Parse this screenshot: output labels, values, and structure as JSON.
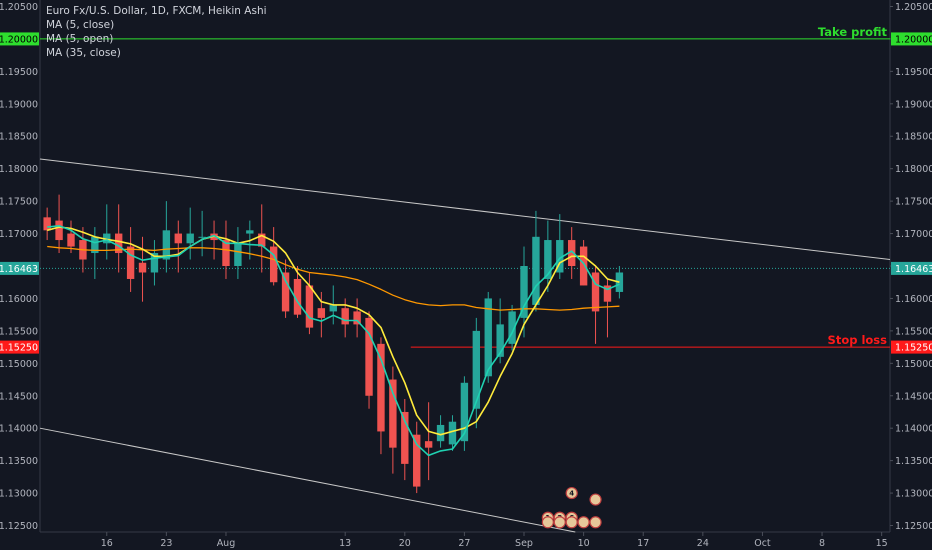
{
  "chart_data": {
    "type": "candlestick",
    "title": "Euro Fx/U.S. Dollar, 1D, FXCM, Heikin Ashi",
    "indicators": [
      "MA (5, close)",
      "MA (5, open)",
      "MA (35, close)"
    ],
    "ylim": [
      1.124,
      1.206
    ],
    "y_ticks": [
      1.125,
      1.13,
      1.135,
      1.14,
      1.145,
      1.15,
      1.155,
      1.16,
      1.165,
      1.17,
      1.175,
      1.18,
      1.185,
      1.19,
      1.195,
      1.2,
      1.205
    ],
    "y_tick_labels": [
      "1.12500",
      "1.13000",
      "1.13500",
      "1.14000",
      "1.14500",
      "1.15000",
      "1.15500",
      "1.16000",
      "1.16500",
      "1.17000",
      "1.17500",
      "1.18000",
      "1.18500",
      "1.19000",
      "1.19500",
      "1.20000",
      "1.20500"
    ],
    "x_ticks": [
      {
        "i": 5,
        "label": "16"
      },
      {
        "i": 10,
        "label": "23"
      },
      {
        "i": 15,
        "label": "Aug"
      },
      {
        "i": 25,
        "label": "13"
      },
      {
        "i": 30,
        "label": "20"
      },
      {
        "i": 35,
        "label": "27"
      },
      {
        "i": 40,
        "label": "Sep"
      },
      {
        "i": 45,
        "label": "10"
      },
      {
        "i": 50,
        "label": "17"
      },
      {
        "i": 55,
        "label": "24"
      },
      {
        "i": 60,
        "label": "Oct"
      },
      {
        "i": 65,
        "label": "8"
      },
      {
        "i": 70,
        "label": "15"
      }
    ],
    "x_range": [
      -0.6,
      70.7
    ],
    "colors": {
      "up": "#26a69a",
      "down": "#ef5350",
      "ma5close": "#1fd1b1",
      "ma5open": "#ffeb3b",
      "ma35": "#ff9800",
      "take_profit": "#2ede2e",
      "stop_loss": "#ff1a1a",
      "trend": "#c8c8c8",
      "price_tag": "#26a69a"
    },
    "candles": [
      {
        "o": 1.1725,
        "h": 1.174,
        "l": 1.169,
        "c": 1.1705
      },
      {
        "o": 1.172,
        "h": 1.176,
        "l": 1.167,
        "c": 1.169
      },
      {
        "o": 1.17,
        "h": 1.172,
        "l": 1.167,
        "c": 1.168
      },
      {
        "o": 1.169,
        "h": 1.171,
        "l": 1.164,
        "c": 1.166
      },
      {
        "o": 1.167,
        "h": 1.171,
        "l": 1.163,
        "c": 1.1695
      },
      {
        "o": 1.1685,
        "h": 1.1745,
        "l": 1.166,
        "c": 1.17
      },
      {
        "o": 1.17,
        "h": 1.1745,
        "l": 1.164,
        "c": 1.167
      },
      {
        "o": 1.168,
        "h": 1.171,
        "l": 1.161,
        "c": 1.163
      },
      {
        "o": 1.1655,
        "h": 1.1695,
        "l": 1.1595,
        "c": 1.164
      },
      {
        "o": 1.164,
        "h": 1.169,
        "l": 1.162,
        "c": 1.167
      },
      {
        "o": 1.166,
        "h": 1.175,
        "l": 1.164,
        "c": 1.1705
      },
      {
        "o": 1.17,
        "h": 1.172,
        "l": 1.164,
        "c": 1.1685
      },
      {
        "o": 1.1685,
        "h": 1.174,
        "l": 1.166,
        "c": 1.17
      },
      {
        "o": 1.1695,
        "h": 1.1735,
        "l": 1.1665,
        "c": 1.1695
      },
      {
        "o": 1.17,
        "h": 1.172,
        "l": 1.166,
        "c": 1.169
      },
      {
        "o": 1.169,
        "h": 1.172,
        "l": 1.163,
        "c": 1.165
      },
      {
        "o": 1.165,
        "h": 1.171,
        "l": 1.163,
        "c": 1.1685
      },
      {
        "o": 1.17,
        "h": 1.172,
        "l": 1.166,
        "c": 1.1705
      },
      {
        "o": 1.17,
        "h": 1.1745,
        "l": 1.164,
        "c": 1.168
      },
      {
        "o": 1.168,
        "h": 1.171,
        "l": 1.162,
        "c": 1.1625
      },
      {
        "o": 1.164,
        "h": 1.166,
        "l": 1.157,
        "c": 1.158
      },
      {
        "o": 1.163,
        "h": 1.165,
        "l": 1.157,
        "c": 1.1575
      },
      {
        "o": 1.162,
        "h": 1.164,
        "l": 1.1545,
        "c": 1.1555
      },
      {
        "o": 1.1585,
        "h": 1.161,
        "l": 1.154,
        "c": 1.157
      },
      {
        "o": 1.158,
        "h": 1.162,
        "l": 1.156,
        "c": 1.159
      },
      {
        "o": 1.1585,
        "h": 1.16,
        "l": 1.154,
        "c": 1.156
      },
      {
        "o": 1.158,
        "h": 1.16,
        "l": 1.154,
        "c": 1.156
      },
      {
        "o": 1.157,
        "h": 1.158,
        "l": 1.143,
        "c": 1.145
      },
      {
        "o": 1.153,
        "h": 1.154,
        "l": 1.136,
        "c": 1.1395
      },
      {
        "o": 1.1475,
        "h": 1.1495,
        "l": 1.133,
        "c": 1.137
      },
      {
        "o": 1.1425,
        "h": 1.1445,
        "l": 1.132,
        "c": 1.1345
      },
      {
        "o": 1.139,
        "h": 1.141,
        "l": 1.13,
        "c": 1.131
      },
      {
        "o": 1.138,
        "h": 1.144,
        "l": 1.132,
        "c": 1.137
      },
      {
        "o": 1.138,
        "h": 1.142,
        "l": 1.137,
        "c": 1.1405
      },
      {
        "o": 1.1375,
        "h": 1.142,
        "l": 1.1365,
        "c": 1.141
      },
      {
        "o": 1.138,
        "h": 1.148,
        "l": 1.1365,
        "c": 1.147
      },
      {
        "o": 1.143,
        "h": 1.157,
        "l": 1.14,
        "c": 1.155
      },
      {
        "o": 1.148,
        "h": 1.161,
        "l": 1.147,
        "c": 1.16
      },
      {
        "o": 1.151,
        "h": 1.16,
        "l": 1.15,
        "c": 1.156
      },
      {
        "o": 1.153,
        "h": 1.159,
        "l": 1.152,
        "c": 1.158
      },
      {
        "o": 1.157,
        "h": 1.168,
        "l": 1.154,
        "c": 1.165
      },
      {
        "o": 1.159,
        "h": 1.1735,
        "l": 1.158,
        "c": 1.1695
      },
      {
        "o": 1.163,
        "h": 1.172,
        "l": 1.161,
        "c": 1.169
      },
      {
        "o": 1.164,
        "h": 1.173,
        "l": 1.163,
        "c": 1.169
      },
      {
        "o": 1.169,
        "h": 1.171,
        "l": 1.163,
        "c": 1.165
      },
      {
        "o": 1.168,
        "h": 1.169,
        "l": 1.162,
        "c": 1.162
      },
      {
        "o": 1.164,
        "h": 1.165,
        "l": 1.153,
        "c": 1.158
      },
      {
        "o": 1.162,
        "h": 1.163,
        "l": 1.154,
        "c": 1.1595
      },
      {
        "o": 1.161,
        "h": 1.165,
        "l": 1.16,
        "c": 1.164
      }
    ],
    "ma_5_close": [
      1.171,
      1.1712,
      1.1705,
      1.1692,
      1.1686,
      1.169,
      1.1681,
      1.1667,
      1.1659,
      1.1662,
      1.1664,
      1.1666,
      1.168,
      1.1691,
      1.1697,
      1.1685,
      1.1685,
      1.1683,
      1.1682,
      1.1667,
      1.1627,
      1.1595,
      1.157,
      1.1565,
      1.1574,
      1.1566,
      1.1566,
      1.1546,
      1.1506,
      1.1454,
      1.1411,
      1.1375,
      1.1358,
      1.1365,
      1.1368,
      1.1392,
      1.1441,
      1.149,
      1.1516,
      1.1547,
      1.1588,
      1.1619,
      1.1637,
      1.1662,
      1.1673,
      1.1654,
      1.1622,
      1.1614,
      1.1622
    ],
    "ma_5_open": [
      1.1705,
      1.171,
      1.1708,
      1.1702,
      1.1695,
      1.1691,
      1.1688,
      1.1684,
      1.1676,
      1.1665,
      1.1665,
      1.1668,
      1.168,
      1.1691,
      1.1696,
      1.1692,
      1.1685,
      1.1689,
      1.1697,
      1.1688,
      1.167,
      1.164,
      1.162,
      1.1595,
      1.159,
      1.159,
      1.1585,
      1.1575,
      1.1555,
      1.151,
      1.147,
      1.142,
      1.1395,
      1.139,
      1.1395,
      1.14,
      1.141,
      1.144,
      1.148,
      1.1515,
      1.156,
      1.159,
      1.162,
      1.1655,
      1.1665,
      1.1665,
      1.165,
      1.163,
      1.1625
    ],
    "ma_35_close": [
      1.168,
      1.1678,
      1.1677,
      1.1675,
      1.1674,
      1.1674,
      1.1675,
      1.1676,
      1.1675,
      1.1674,
      1.1676,
      1.1677,
      1.1678,
      1.1678,
      1.1677,
      1.1675,
      1.1672,
      1.1669,
      1.1665,
      1.166,
      1.1652,
      1.1645,
      1.164,
      1.1638,
      1.1636,
      1.1633,
      1.1629,
      1.1622,
      1.1614,
      1.1605,
      1.1598,
      1.1593,
      1.159,
      1.1589,
      1.159,
      1.159,
      1.1586,
      1.1584,
      1.1582,
      1.1583,
      1.1584,
      1.1584,
      1.1583,
      1.1582,
      1.1583,
      1.1585,
      1.1586,
      1.1587,
      1.1588
    ],
    "ma_35_start": 0,
    "horizontal_lines": [
      {
        "name": "take-profit",
        "price": 1.2,
        "label": "Take profit",
        "tag": "1.20000",
        "x_start": -0.6
      },
      {
        "name": "stop-loss",
        "price": 1.1525,
        "label": "Stop loss",
        "tag": "1.15250",
        "x_start": 30.5
      }
    ],
    "trend_lines": [
      {
        "name": "upper-trend-line",
        "x1": -0.6,
        "y1": 1.1815,
        "x2": 70.7,
        "y2": 1.166
      },
      {
        "name": "lower-trend-line",
        "x1": -0.6,
        "y1": 1.14,
        "x2": 44.3,
        "y2": 1.124
      }
    ],
    "last_price": {
      "value": 1.16463,
      "tag": "1.16463"
    },
    "events": [
      {
        "i": 44,
        "price": 1.13,
        "text": "4"
      },
      {
        "i": 46,
        "price": 1.129,
        "text": ""
      },
      {
        "i": 42,
        "price": 1.1262,
        "text": "1"
      },
      {
        "i": 43,
        "price": 1.1262,
        "text": "2"
      },
      {
        "i": 44,
        "price": 1.1262,
        "text": "6"
      },
      {
        "i": 42,
        "price": 1.1255,
        "text": ""
      },
      {
        "i": 43,
        "price": 1.1255,
        "text": ""
      },
      {
        "i": 44,
        "price": 1.1255,
        "text": ""
      },
      {
        "i": 45,
        "price": 1.1255,
        "text": ""
      },
      {
        "i": 46,
        "price": 1.1255,
        "text": ""
      }
    ]
  }
}
